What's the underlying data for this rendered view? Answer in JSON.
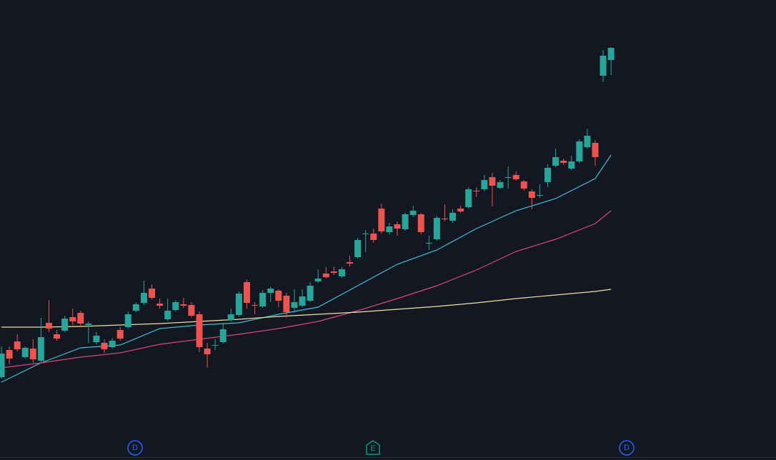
{
  "chart_data": {
    "type": "candlestick",
    "categories": [
      null,
      null,
      null,
      null,
      null,
      null,
      null,
      null,
      null,
      null,
      null,
      null,
      null,
      null,
      null,
      null,
      null,
      null,
      null,
      null,
      null,
      null,
      null,
      null,
      null,
      null,
      null,
      null,
      null,
      null,
      null,
      null,
      null,
      null,
      null,
      null,
      null,
      null,
      null,
      null,
      null,
      null,
      null,
      null,
      null,
      null,
      null,
      null,
      null,
      null,
      null,
      null,
      null,
      null,
      null,
      null,
      null,
      null,
      null,
      null,
      null,
      null,
      null,
      null,
      null,
      null,
      null,
      null,
      null,
      null,
      null,
      null,
      null,
      null,
      null,
      null,
      null,
      null
    ],
    "open": [
      116,
      154,
      166,
      144,
      156,
      139,
      192,
      176,
      181,
      200,
      206,
      189,
      165,
      164,
      158,
      182,
      186,
      209,
      220,
      240,
      219,
      197,
      210,
      218,
      217,
      204,
      156,
      161,
      165,
      196,
      203,
      249,
      217,
      215,
      234,
      237,
      230,
      213,
      216,
      223,
      250,
      261,
      264,
      257,
      277,
      284,
      317,
      317,
      352,
      319,
      330,
      323,
      343,
      344,
      304,
      309,
      338,
      335,
      352,
      354,
      377,
      379,
      396,
      381,
      396,
      399,
      390,
      376,
      371,
      389,
      412,
      419,
      408,
      418,
      438,
      444,
      538,
      560
    ],
    "high": [
      159,
      159,
      176,
      159,
      169,
      199,
      224,
      182,
      202,
      212,
      209,
      194,
      179,
      169,
      171,
      186,
      208,
      221,
      251,
      246,
      226,
      226,
      224,
      227,
      221,
      208,
      164,
      169,
      192,
      212,
      236,
      253,
      221,
      238,
      243,
      239,
      234,
      239,
      239,
      249,
      267,
      270,
      271,
      270,
      286,
      311,
      322,
      324,
      359,
      332,
      334,
      346,
      356,
      346,
      314,
      342,
      358,
      351,
      356,
      382,
      382,
      399,
      402,
      392,
      411,
      404,
      392,
      379,
      386,
      414,
      436,
      422,
      426,
      449,
      464,
      448,
      574,
      578
    ],
    "low": [
      114,
      134,
      152,
      142,
      136,
      137,
      179,
      167,
      179,
      189,
      186,
      164,
      162,
      150,
      156,
      167,
      184,
      207,
      217,
      225,
      212,
      195,
      208,
      213,
      200,
      151,
      129,
      154,
      163,
      194,
      201,
      212,
      204,
      213,
      221,
      214,
      199,
      206,
      214,
      221,
      248,
      254,
      259,
      255,
      271,
      282,
      291,
      304,
      317,
      316,
      314,
      321,
      340,
      316,
      294,
      307,
      334,
      332,
      346,
      352,
      368,
      376,
      355,
      379,
      380,
      391,
      377,
      351,
      367,
      382,
      410,
      413,
      406,
      416,
      436,
      412,
      529,
      539
    ],
    "close": [
      149,
      142,
      155,
      157,
      141,
      172,
      184,
      170,
      198,
      194,
      191,
      191,
      174,
      155,
      167,
      170,
      204,
      218,
      234,
      227,
      216,
      209,
      221,
      216,
      202,
      158,
      148,
      161,
      183,
      204,
      233,
      220,
      216,
      234,
      240,
      223,
      207,
      221,
      229,
      244,
      254,
      256,
      262,
      267,
      275,
      308,
      317,
      308,
      320,
      327,
      324,
      344,
      349,
      319,
      304,
      339,
      337,
      346,
      348,
      379,
      376,
      392,
      384,
      389,
      396,
      393,
      380,
      367,
      371,
      409,
      424,
      416,
      418,
      446,
      454,
      424,
      566,
      577
    ],
    "up_color": "#26a69a",
    "down_color": "#ef5350",
    "ylim": [
      0,
      644
    ],
    "lines": [
      {
        "color": "#3fc1d6",
        "x": [
          0,
          5,
          10,
          15,
          20,
          25,
          30,
          35,
          40,
          45,
          50,
          55,
          60,
          65,
          70,
          75,
          77
        ],
        "values": [
          109,
          136,
          157,
          161,
          184,
          189,
          192,
          204,
          214,
          244,
          274,
          294,
          324,
          349,
          366,
          394,
          427
        ]
      },
      {
        "color": "#e0457b",
        "x": [
          0,
          5,
          10,
          15,
          20,
          25,
          30,
          35,
          40,
          45,
          50,
          55,
          60,
          65,
          70,
          75,
          77
        ],
        "values": [
          129,
          136,
          144,
          150,
          162,
          169,
          176,
          184,
          194,
          209,
          226,
          244,
          266,
          292,
          309,
          331,
          349
        ]
      },
      {
        "color": "#ede4a6",
        "x": [
          0,
          5,
          10,
          15,
          20,
          25,
          30,
          35,
          40,
          45,
          50,
          55,
          60,
          65,
          70,
          75,
          77
        ],
        "values": [
          186,
          186,
          187,
          189,
          191,
          194,
          197,
          201,
          204,
          207,
          211,
          215,
          220,
          226,
          231,
          236,
          239
        ]
      }
    ]
  },
  "events": [
    {
      "label": "D"
    },
    {
      "label": "E"
    },
    {
      "label": "D"
    }
  ]
}
